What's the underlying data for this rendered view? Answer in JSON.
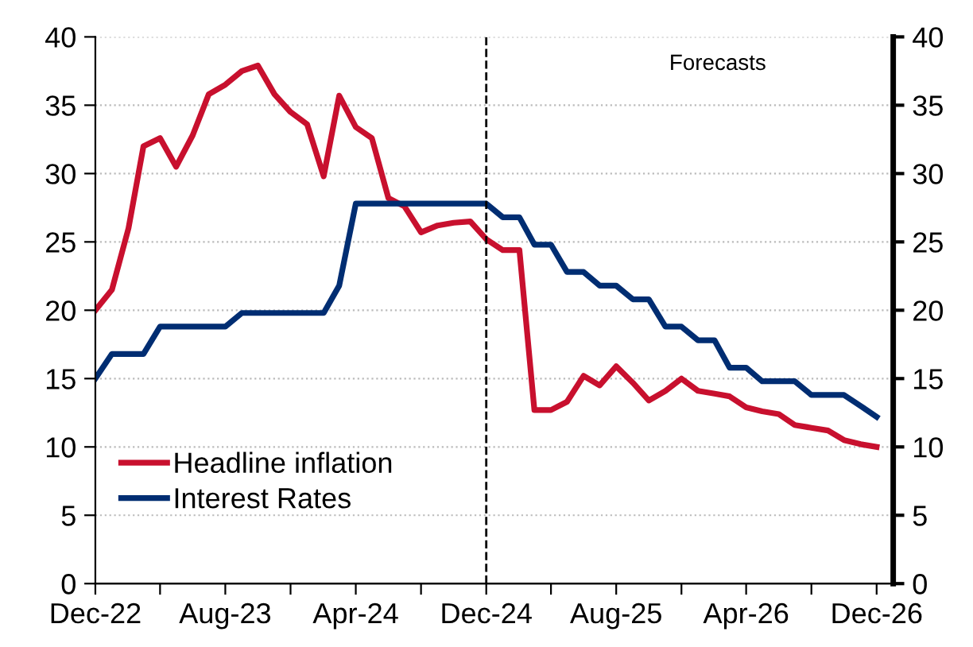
{
  "chart_data": {
    "type": "line",
    "x": [
      "2022-12",
      "2023-01",
      "2023-02",
      "2023-03",
      "2023-04",
      "2023-05",
      "2023-06",
      "2023-07",
      "2023-08",
      "2023-09",
      "2023-10",
      "2023-11",
      "2023-12",
      "2024-01",
      "2024-02",
      "2024-03",
      "2024-04",
      "2024-05",
      "2024-06",
      "2024-07",
      "2024-08",
      "2024-09",
      "2024-10",
      "2024-11",
      "2024-12",
      "2025-01",
      "2025-02",
      "2025-03",
      "2025-04",
      "2025-05",
      "2025-06",
      "2025-07",
      "2025-08",
      "2025-09",
      "2025-10",
      "2025-11",
      "2025-12",
      "2026-01",
      "2026-02",
      "2026-03",
      "2026-04",
      "2026-05",
      "2026-06",
      "2026-07",
      "2026-08",
      "2026-09",
      "2026-10",
      "2026-11",
      "2026-12"
    ],
    "series": [
      {
        "name": "Headline inflation",
        "color": "#c8102e",
        "values": [
          20.0,
          21.5,
          26.0,
          32.0,
          32.6,
          30.5,
          32.8,
          35.8,
          36.5,
          37.5,
          37.9,
          35.8,
          34.5,
          33.6,
          29.8,
          35.7,
          33.4,
          32.6,
          28.2,
          27.6,
          25.7,
          26.2,
          26.4,
          26.5,
          25.2,
          24.4,
          24.4,
          12.7,
          12.7,
          13.3,
          15.2,
          14.5,
          15.9,
          14.7,
          13.4,
          14.1,
          15.0,
          14.1,
          13.9,
          13.7,
          12.9,
          12.6,
          12.4,
          11.6,
          11.4,
          11.2,
          10.5,
          10.2,
          10.0
        ]
      },
      {
        "name": "Interest Rates",
        "color": "#002d72",
        "values": [
          15.0,
          16.8,
          16.8,
          16.8,
          18.8,
          18.8,
          18.8,
          18.8,
          18.8,
          19.8,
          19.8,
          19.8,
          19.8,
          19.8,
          19.8,
          21.8,
          27.8,
          27.8,
          27.8,
          27.8,
          27.8,
          27.8,
          27.8,
          27.8,
          27.8,
          26.8,
          26.8,
          24.8,
          24.8,
          22.8,
          22.8,
          21.8,
          21.8,
          20.8,
          20.8,
          18.8,
          18.8,
          17.8,
          17.8,
          15.8,
          15.8,
          14.8,
          14.8,
          14.8,
          13.8,
          13.8,
          13.8,
          13.0,
          12.2
        ]
      }
    ],
    "xlim": [
      "2022-12",
      "2027-01"
    ],
    "xticks": [
      {
        "value": "2022-12",
        "label": "Dec-22"
      },
      {
        "value": "2023-04",
        "label": null
      },
      {
        "value": "2023-08",
        "label": "Aug-23"
      },
      {
        "value": "2023-12",
        "label": null
      },
      {
        "value": "2024-04",
        "label": "Apr-24"
      },
      {
        "value": "2024-08",
        "label": null
      },
      {
        "value": "2024-12",
        "label": "Dec-24"
      },
      {
        "value": "2025-04",
        "label": null
      },
      {
        "value": "2025-08",
        "label": "Aug-25"
      },
      {
        "value": "2025-12",
        "label": null
      },
      {
        "value": "2026-04",
        "label": "Apr-26"
      },
      {
        "value": "2026-08",
        "label": null
      },
      {
        "value": "2026-12",
        "label": "Dec-26"
      }
    ],
    "ylim": [
      0,
      40
    ],
    "yticks": [
      0,
      5,
      10,
      15,
      20,
      25,
      30,
      35,
      40
    ],
    "y2lim": [
      0,
      40
    ],
    "y2ticks": [
      0,
      5,
      10,
      15,
      20,
      25,
      30,
      35,
      40
    ],
    "ref_lines": [
      {
        "axis": "x",
        "value": "2024-12",
        "color": "#000000",
        "line_style": "dashed"
      }
    ],
    "annotations": [
      "Forecasts"
    ],
    "grid": "y",
    "legend": "bottom left",
    "marker": "none",
    "line_style": "solid"
  }
}
